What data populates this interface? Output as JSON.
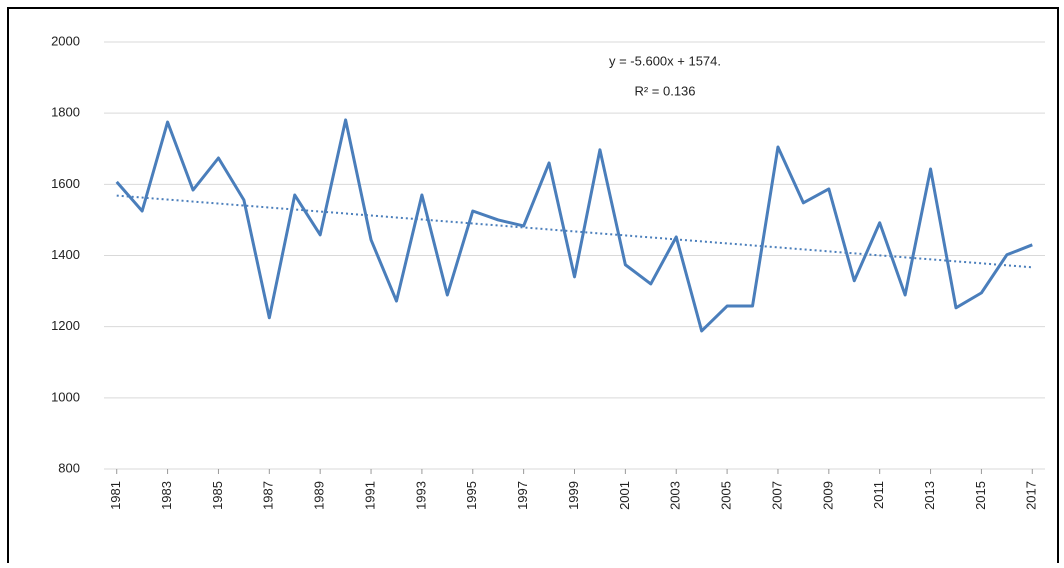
{
  "chart_data": {
    "type": "line",
    "x": [
      1981,
      1982,
      1983,
      1984,
      1985,
      1986,
      1987,
      1988,
      1989,
      1990,
      1991,
      1992,
      1993,
      1994,
      1995,
      1996,
      1997,
      1998,
      1999,
      2000,
      2001,
      2002,
      2003,
      2004,
      2005,
      2006,
      2007,
      2008,
      2009,
      2010,
      2011,
      2012,
      2013,
      2014,
      2015,
      2016,
      2017
    ],
    "series": [
      {
        "color": "#4a7ebb",
        "values": [
          1607,
          1525,
          1775,
          1584,
          1674,
          1556,
          1225,
          1570,
          1458,
          1781,
          1444,
          1272,
          1570,
          1289,
          1525,
          1500,
          1483,
          1660,
          1340,
          1697,
          1374,
          1320,
          1452,
          1188,
          1258,
          1258,
          1705,
          1548,
          1587,
          1329,
          1492,
          1289,
          1643,
          1253,
          1295,
          1402,
          1430
        ]
      }
    ],
    "trendline": {
      "x": [
        1981,
        2017
      ],
      "values": [
        1568.4,
        1366.8
      ],
      "color": "#4a7ebb",
      "style": "dotted"
    },
    "annotations": [
      "y = -5.600x  + 1574.",
      "R² = 0.136"
    ],
    "xlim": [
      1980.5,
      2017.5
    ],
    "xticks": [
      1981,
      1983,
      1985,
      1987,
      1989,
      1991,
      1993,
      1995,
      1997,
      1999,
      2001,
      2003,
      2005,
      2007,
      2009,
      2011,
      2013,
      2015,
      2017
    ],
    "ylim": [
      800,
      2000
    ],
    "yticks": [
      800,
      1000,
      1200,
      1400,
      1600,
      1800,
      2000
    ],
    "grid": true
  }
}
